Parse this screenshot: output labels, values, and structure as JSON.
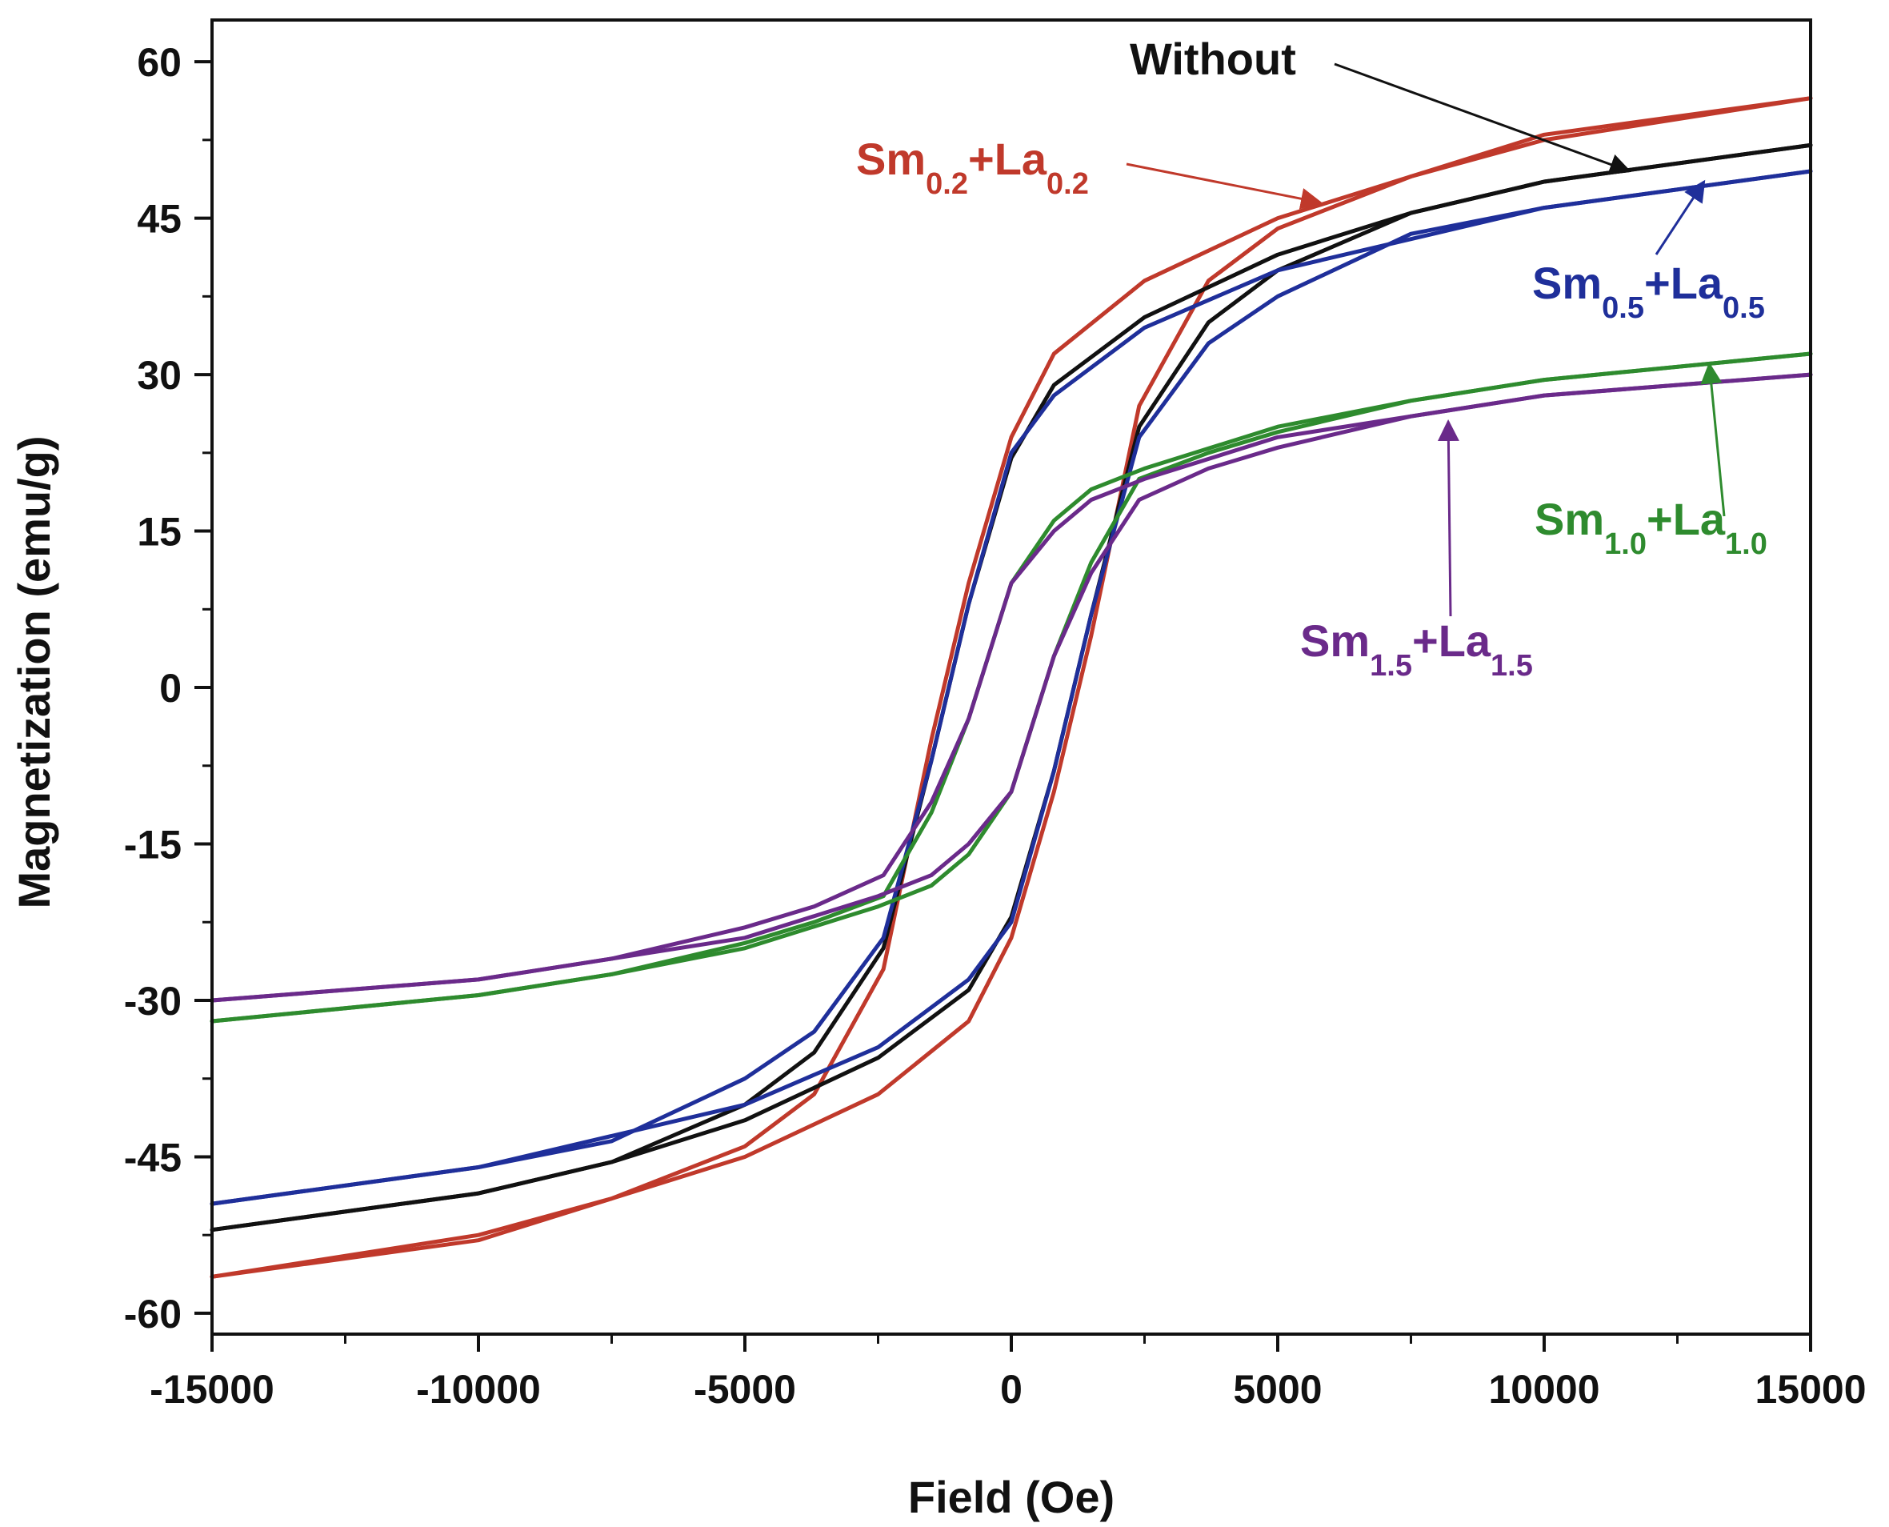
{
  "chart_data": {
    "type": "line",
    "xlabel": "Field (Oe)",
    "ylabel": "Magnetization (emu/g)",
    "xlim": [
      -15000,
      15000
    ],
    "ylim": [
      -62,
      64
    ],
    "x_ticks": [
      -15000,
      -10000,
      -5000,
      0,
      5000,
      10000,
      15000
    ],
    "x_tick_labels": [
      "-15000",
      "-10000",
      "-5000",
      "0",
      "5000",
      "10000",
      "15000"
    ],
    "y_ticks": [
      -60,
      -45,
      -30,
      -15,
      0,
      15,
      30,
      45,
      60
    ],
    "y_tick_labels": [
      "-60",
      "-45",
      "-30",
      "-15",
      "0",
      "15",
      "30",
      "45",
      "60"
    ],
    "series": [
      {
        "name": "Sm0.2+La0.2",
        "label_main": "Sm",
        "label_sub1": "0.2",
        "label_mid": "+La",
        "label_sub2": "0.2",
        "color": "#c0392b",
        "descending": [
          [
            15000,
            56.5
          ],
          [
            10000,
            52.5
          ],
          [
            7500,
            49.0
          ],
          [
            5000,
            45.0
          ],
          [
            2500,
            39.0
          ],
          [
            800,
            32.0
          ],
          [
            0,
            24.0
          ],
          [
            -800,
            10.0
          ],
          [
            -1500,
            -5.0
          ],
          [
            -2400,
            -27.0
          ],
          [
            -3700,
            -39.0
          ],
          [
            -5000,
            -44.0
          ],
          [
            -7500,
            -49.0
          ],
          [
            -10000,
            -53.0
          ],
          [
            -15000,
            -56.5
          ]
        ],
        "ascending": [
          [
            -15000,
            -56.5
          ],
          [
            -10000,
            -52.5
          ],
          [
            -7500,
            -49.0
          ],
          [
            -5000,
            -45.0
          ],
          [
            -2500,
            -39.0
          ],
          [
            -800,
            -32.0
          ],
          [
            0,
            -24.0
          ],
          [
            800,
            -10.0
          ],
          [
            1500,
            5.0
          ],
          [
            2400,
            27.0
          ],
          [
            3700,
            39.0
          ],
          [
            5000,
            44.0
          ],
          [
            7500,
            49.0
          ],
          [
            10000,
            53.0
          ],
          [
            15000,
            56.5
          ]
        ]
      },
      {
        "name": "Without",
        "label_main": "Without",
        "color": "#111111",
        "descending": [
          [
            15000,
            52.0
          ],
          [
            10000,
            48.5
          ],
          [
            7500,
            45.5
          ],
          [
            5000,
            41.5
          ],
          [
            2500,
            35.5
          ],
          [
            800,
            29.0
          ],
          [
            0,
            22.0
          ],
          [
            -800,
            8.0
          ],
          [
            -1500,
            -7.0
          ],
          [
            -2400,
            -25.0
          ],
          [
            -3700,
            -35.0
          ],
          [
            -5000,
            -40.0
          ],
          [
            -7500,
            -45.5
          ],
          [
            -10000,
            -48.5
          ],
          [
            -15000,
            -52.0
          ]
        ],
        "ascending": [
          [
            -15000,
            -52.0
          ],
          [
            -10000,
            -48.5
          ],
          [
            -7500,
            -45.5
          ],
          [
            -5000,
            -41.5
          ],
          [
            -2500,
            -35.5
          ],
          [
            -800,
            -29.0
          ],
          [
            0,
            -22.0
          ],
          [
            800,
            -8.0
          ],
          [
            1500,
            7.0
          ],
          [
            2400,
            25.0
          ],
          [
            3700,
            35.0
          ],
          [
            5000,
            40.0
          ],
          [
            7500,
            45.5
          ],
          [
            10000,
            48.5
          ],
          [
            15000,
            52.0
          ]
        ]
      },
      {
        "name": "Sm0.5+La0.5",
        "label_main": "Sm",
        "label_sub1": "0.5",
        "label_mid": "+La",
        "label_sub2": "0.5",
        "color": "#1f2f9a",
        "descending": [
          [
            15000,
            49.5
          ],
          [
            10000,
            46.0
          ],
          [
            7500,
            43.0
          ],
          [
            5000,
            40.0
          ],
          [
            2500,
            34.5
          ],
          [
            800,
            28.0
          ],
          [
            0,
            22.5
          ],
          [
            -800,
            8.0
          ],
          [
            -1500,
            -7.0
          ],
          [
            -2400,
            -24.0
          ],
          [
            -3700,
            -33.0
          ],
          [
            -5000,
            -37.5
          ],
          [
            -7500,
            -43.5
          ],
          [
            -10000,
            -46.0
          ],
          [
            -15000,
            -49.5
          ]
        ],
        "ascending": [
          [
            -15000,
            -49.5
          ],
          [
            -10000,
            -46.0
          ],
          [
            -7500,
            -43.0
          ],
          [
            -5000,
            -40.0
          ],
          [
            -2500,
            -34.5
          ],
          [
            -800,
            -28.0
          ],
          [
            0,
            -22.5
          ],
          [
            800,
            -8.0
          ],
          [
            1500,
            7.0
          ],
          [
            2400,
            24.0
          ],
          [
            3700,
            33.0
          ],
          [
            5000,
            37.5
          ],
          [
            7500,
            43.5
          ],
          [
            10000,
            46.0
          ],
          [
            15000,
            49.5
          ]
        ]
      },
      {
        "name": "Sm1.0+La1.0",
        "label_main": "Sm",
        "label_sub1": "1.0",
        "label_mid": "+La",
        "label_sub2": "1.0",
        "color": "#2e8b2e",
        "descending": [
          [
            15000,
            32.0
          ],
          [
            10000,
            29.5
          ],
          [
            7500,
            27.5
          ],
          [
            5000,
            25.0
          ],
          [
            2500,
            21.0
          ],
          [
            1500,
            19.0
          ],
          [
            800,
            16.0
          ],
          [
            0,
            10.0
          ],
          [
            -800,
            -3.0
          ],
          [
            -1500,
            -12.0
          ],
          [
            -2400,
            -20.0
          ],
          [
            -3700,
            -22.5
          ],
          [
            -5000,
            -24.5
          ],
          [
            -7500,
            -27.5
          ],
          [
            -10000,
            -29.5
          ],
          [
            -15000,
            -32.0
          ]
        ],
        "ascending": [
          [
            -15000,
            -32.0
          ],
          [
            -10000,
            -29.5
          ],
          [
            -7500,
            -27.5
          ],
          [
            -5000,
            -25.0
          ],
          [
            -2500,
            -21.0
          ],
          [
            -1500,
            -19.0
          ],
          [
            -800,
            -16.0
          ],
          [
            0,
            -10.0
          ],
          [
            800,
            3.0
          ],
          [
            1500,
            12.0
          ],
          [
            2400,
            20.0
          ],
          [
            3700,
            22.5
          ],
          [
            5000,
            24.5
          ],
          [
            7500,
            27.5
          ],
          [
            10000,
            29.5
          ],
          [
            15000,
            32.0
          ]
        ]
      },
      {
        "name": "Sm1.5+La1.5",
        "label_main": "Sm",
        "label_sub1": "1.5",
        "label_mid": "+La",
        "label_sub2": "1.5",
        "color": "#6a2a8a",
        "descending": [
          [
            15000,
            30.0
          ],
          [
            10000,
            28.0
          ],
          [
            7500,
            26.0
          ],
          [
            5000,
            24.0
          ],
          [
            2500,
            20.0
          ],
          [
            1500,
            18.0
          ],
          [
            800,
            15.0
          ],
          [
            0,
            10.0
          ],
          [
            -800,
            -3.0
          ],
          [
            -1500,
            -11.0
          ],
          [
            -2400,
            -18.0
          ],
          [
            -3700,
            -21.0
          ],
          [
            -5000,
            -23.0
          ],
          [
            -7500,
            -26.0
          ],
          [
            -10000,
            -28.0
          ],
          [
            -15000,
            -30.0
          ]
        ],
        "ascending": [
          [
            -15000,
            -30.0
          ],
          [
            -10000,
            -28.0
          ],
          [
            -7500,
            -26.0
          ],
          [
            -5000,
            -24.0
          ],
          [
            -2500,
            -20.0
          ],
          [
            -1500,
            -18.0
          ],
          [
            -800,
            -15.0
          ],
          [
            0,
            -10.0
          ],
          [
            800,
            3.0
          ],
          [
            1500,
            11.0
          ],
          [
            2400,
            18.0
          ],
          [
            3700,
            21.0
          ],
          [
            5000,
            23.0
          ],
          [
            7500,
            26.0
          ],
          [
            10000,
            28.0
          ],
          [
            15000,
            30.0
          ]
        ]
      }
    ],
    "annotations": [
      {
        "series": "Without",
        "arrow_to": [
          11600,
          49.5
        ]
      },
      {
        "series": "Sm0.2+La0.2",
        "arrow_to": [
          5800,
          46.5
        ]
      },
      {
        "series": "Sm0.5+La0.5",
        "arrow_to": [
          13000,
          48.5
        ]
      },
      {
        "series": "Sm1.0+La1.0",
        "arrow_to": [
          13100,
          31.0
        ]
      },
      {
        "series": "Sm1.5+La1.5",
        "arrow_to": [
          8200,
          25.5
        ]
      }
    ]
  }
}
